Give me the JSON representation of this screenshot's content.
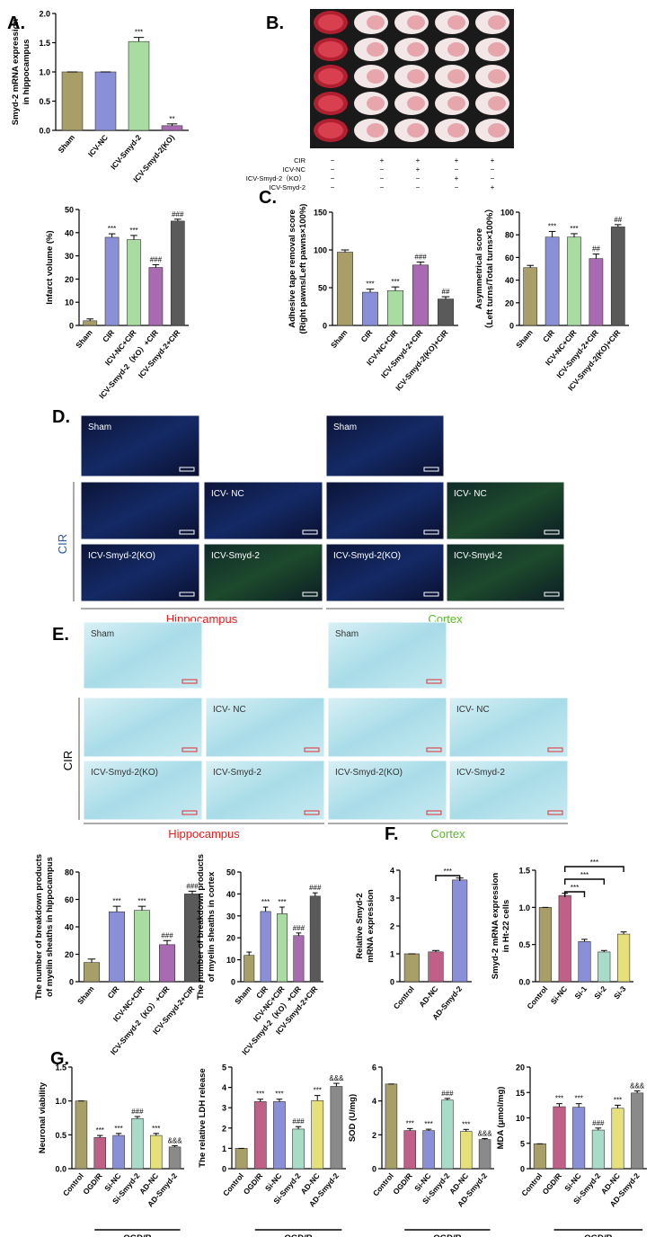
{
  "panels": [
    "A.",
    "B.",
    "C.",
    "D.",
    "E.",
    "F.",
    "G."
  ],
  "treatment_table": {
    "rows": [
      {
        "label": "CIR",
        "signs": [
          "−",
          "+",
          "+",
          "+",
          "+"
        ]
      },
      {
        "label": "ICV-NC",
        "signs": [
          "−",
          "−",
          "+",
          "−",
          "−"
        ]
      },
      {
        "label": "ICV-Smyd-2（KO）",
        "signs": [
          "−",
          "−",
          "−",
          "+",
          "−"
        ]
      },
      {
        "label": "ICV-Smyd-2",
        "signs": [
          "−",
          "−",
          "−",
          "−",
          "+"
        ]
      }
    ]
  },
  "panel_d": {
    "sham_labels": [
      "Sham",
      "Sham"
    ],
    "cell_labels": [
      [
        "ICV- NC",
        "ICV-Smyd-2(KO)",
        "ICV-Smyd-2"
      ],
      [
        "ICV- NC",
        "ICV-Smyd-2(KO)",
        "ICV-Smyd-2"
      ]
    ],
    "group_label": "CIR",
    "regions": [
      "Hippocampus",
      "Cortex"
    ]
  },
  "panel_e": {
    "sham_labels": [
      "Sham",
      "Sham"
    ],
    "cell_labels": [
      [
        "ICV- NC",
        "ICV-Smyd-2(KO)",
        "ICV-Smyd-2"
      ],
      [
        "ICV- NC",
        "ICV-Smyd-2(KO)",
        "ICV-Smyd-2"
      ]
    ],
    "group_label": "CIR",
    "regions": [
      "Hippocampus",
      "Cortex"
    ]
  },
  "chart_data": [
    {
      "type": "bar",
      "y_label": [
        "Smyd-2 mRNA expression",
        "in hippocampus"
      ],
      "categories": [
        "Sham",
        "ICV-NC",
        "ICV-Smyd-2",
        "ICV-Smyd-2(KO)"
      ],
      "values": [
        1.0,
        1.0,
        1.52,
        0.08
      ],
      "errors": [
        0,
        0,
        0.07,
        0.03
      ],
      "annotations": [
        null,
        null,
        "***",
        "**"
      ],
      "colors": [
        "#a89f68",
        "#8a90d8",
        "#a8dca0",
        "#a86ab0"
      ],
      "ylim": [
        0,
        2
      ],
      "yticks": [
        {
          "value": 0,
          "label": "0.0"
        },
        0.5,
        {
          "value": 1,
          "label": "1.0"
        },
        1.5,
        {
          "value": 2,
          "label": "2.0"
        }
      ]
    },
    {
      "type": "bar",
      "y_label": [
        "Infarct volume (%)"
      ],
      "categories": [
        "Sham",
        "CIR",
        "ICV-NC+CIR",
        "ICV-Smyd-2（KO）+CIR",
        "ICV-Smyd-2+CIR"
      ],
      "values": [
        2,
        38,
        37,
        25,
        45
      ],
      "errors": [
        0.8,
        1.5,
        1.8,
        1.2,
        0.8
      ],
      "annotations": [
        null,
        "***",
        "***",
        "###",
        "###"
      ],
      "colors": [
        "#a89f68",
        "#8a90d8",
        "#a8dca0",
        "#a86ab0",
        "#5a5a5a"
      ],
      "ylim": [
        0,
        50
      ],
      "yticks": [
        0,
        10,
        20,
        30,
        40,
        50
      ]
    },
    {
      "type": "bar",
      "y_label": [
        "Adhesive tape removal score",
        "(Right pawns/Left pawns×100%)"
      ],
      "categories": [
        "Sham",
        "CIR",
        "ICV-NC+CIR",
        "ICV-Smyd-2+CIR",
        "ICV-Smyd-2(KO)+CIR"
      ],
      "values": [
        97,
        44,
        46,
        80,
        35
      ],
      "errors": [
        3,
        4,
        5,
        4,
        3
      ],
      "annotations": [
        null,
        "***",
        "***",
        "###",
        "##"
      ],
      "colors": [
        "#a89f68",
        "#8a90d8",
        "#a8dca0",
        "#a86ab0",
        "#5a5a5a"
      ],
      "ylim": [
        0,
        150
      ],
      "yticks": [
        0,
        50,
        100,
        150
      ]
    },
    {
      "type": "bar",
      "y_label": [
        "Asymmetrical score",
        "（Left turns/Total turns×100%）"
      ],
      "categories": [
        "Sham",
        "CIR",
        "ICV-NC+CIR",
        "ICV-Smyd-2+CIR",
        "ICV-Smyd-2(KO)+CIR"
      ],
      "values": [
        51,
        78,
        78,
        59,
        87
      ],
      "errors": [
        2,
        5,
        3,
        4,
        2
      ],
      "annotations": [
        null,
        "***",
        "***",
        "##",
        "##"
      ],
      "colors": [
        "#a89f68",
        "#8a90d8",
        "#a8dca0",
        "#a86ab0",
        "#5a5a5a"
      ],
      "ylim": [
        0,
        100
      ],
      "yticks": [
        0,
        20,
        40,
        60,
        80,
        100
      ]
    },
    {
      "type": "bar",
      "y_label": [
        "The number of breakdown products",
        "of myelin sheaths in hippocampus"
      ],
      "categories": [
        "Sham",
        "CIR",
        "ICV-NC+CIR",
        "ICV-Smyd-2（KO）+CIR",
        "ICV-Smyd-2+CIR"
      ],
      "values": [
        14,
        51,
        52,
        27,
        64
      ],
      "errors": [
        2.5,
        4,
        3,
        3,
        2
      ],
      "annotations": [
        null,
        "***",
        "***",
        "###",
        "###"
      ],
      "colors": [
        "#a89f68",
        "#8a90d8",
        "#a8dca0",
        "#a86ab0",
        "#5a5a5a"
      ],
      "ylim": [
        0,
        80
      ],
      "yticks": [
        0,
        20,
        40,
        60,
        80
      ]
    },
    {
      "type": "bar",
      "y_label": [
        "The number of breakdown products",
        "of myelin sheaths in cortex"
      ],
      "categories": [
        "Sham",
        "CIR",
        "ICV-NC+CIR",
        "ICV-Smyd-2（KO）+CIR",
        "ICV-Smyd-2+CIR"
      ],
      "values": [
        12,
        32,
        31,
        21,
        39
      ],
      "errors": [
        1.5,
        2,
        3,
        1.2,
        1.5
      ],
      "annotations": [
        null,
        "***",
        "***",
        "###",
        "###"
      ],
      "colors": [
        "#a89f68",
        "#8a90d8",
        "#a8dca0",
        "#a86ab0",
        "#5a5a5a"
      ],
      "ylim": [
        0,
        50
      ],
      "yticks": [
        0,
        10,
        20,
        30,
        40,
        50
      ]
    },
    {
      "type": "bar",
      "y_label": [
        "Relative Smyd-2",
        "mRNA expression"
      ],
      "categories": [
        "Control",
        "AD-NC",
        "AD-Smyd-2"
      ],
      "values": [
        1.0,
        1.07,
        3.65
      ],
      "errors": [
        0,
        0.05,
        0.07
      ],
      "colors": [
        "#a89f68",
        "#c06088",
        "#8a90d8"
      ],
      "brackets": [
        {
          "from": 1,
          "to": 2,
          "label": "***"
        }
      ],
      "ylim": [
        0,
        4
      ],
      "yticks": [
        0,
        1,
        2,
        3,
        4
      ]
    },
    {
      "type": "bar",
      "y_label": [
        "Smyd-2 mRNA expression",
        "in Ht-22 cells"
      ],
      "categories": [
        "Control",
        "Si-NC",
        "Si-1",
        "Si-2",
        "Si-3"
      ],
      "values": [
        1.0,
        1.16,
        0.54,
        0.4,
        0.64
      ],
      "errors": [
        0,
        0.03,
        0.03,
        0.02,
        0.03
      ],
      "colors": [
        "#a89f68",
        "#c06088",
        "#8a90d8",
        "#a8dcc8",
        "#e6e07a"
      ],
      "brackets": [
        {
          "from": 1,
          "to": 2,
          "label": "***"
        },
        {
          "from": 1,
          "to": 3,
          "label": "***"
        },
        {
          "from": 1,
          "to": 4,
          "label": "***"
        }
      ],
      "ylim": [
        0,
        1.5
      ],
      "yticks": [
        {
          "value": 0,
          "label": "0.0"
        },
        0.5,
        {
          "value": 1,
          "label": "1.0"
        },
        1.5
      ]
    },
    {
      "type": "bar",
      "y_label": [
        "Neuronal viability"
      ],
      "categories": [
        "Control",
        "OGD/R",
        "Si-NC",
        "Si-Smyd-2",
        "AD-NC",
        "AD-Smyd-2"
      ],
      "values": [
        1.0,
        0.46,
        0.49,
        0.74,
        0.49,
        0.32
      ],
      "errors": [
        0,
        0.03,
        0.03,
        0.03,
        0.03,
        0.02
      ],
      "annotations": [
        null,
        "***",
        "***",
        "###",
        "***",
        "&&&"
      ],
      "colors": [
        "#a89f68",
        "#c06088",
        "#8a90d8",
        "#a8dcc8",
        "#e6e07a",
        "#8a8a8a"
      ],
      "group_label": "OGD/R",
      "ylim": [
        0,
        1.5
      ],
      "yticks": [
        {
          "value": 0,
          "label": "0.0"
        },
        0.5,
        {
          "value": 1,
          "label": "1.0"
        },
        1.5
      ]
    },
    {
      "type": "bar",
      "y_label": [
        "The relative LDH release"
      ],
      "categories": [
        "Control",
        "OGD/R",
        "Si-NC",
        "Si-Smyd-2",
        "AD-NC",
        "AD-Smyd-2"
      ],
      "values": [
        1.0,
        3.3,
        3.3,
        1.95,
        3.35,
        4.05
      ],
      "errors": [
        0,
        0.12,
        0.12,
        0.12,
        0.25,
        0.15
      ],
      "annotations": [
        null,
        "***",
        "***",
        "###",
        "***",
        "&&&"
      ],
      "colors": [
        "#a89f68",
        "#c06088",
        "#8a90d8",
        "#a8dcc8",
        "#e6e07a",
        "#8a8a8a"
      ],
      "group_label": "OGD/R",
      "ylim": [
        0,
        5
      ],
      "yticks": [
        0,
        1,
        2,
        3,
        4,
        5
      ]
    },
    {
      "type": "bar",
      "y_label": [
        "SOD (U/mg)"
      ],
      "categories": [
        "Control",
        "OGD/R",
        "Si-NC",
        "Si-Smyd-2",
        "AD-NC",
        "AD-Smyd-2"
      ],
      "values": [
        5.0,
        2.25,
        2.25,
        4.05,
        2.2,
        1.72
      ],
      "errors": [
        0,
        0.12,
        0.08,
        0.1,
        0.12,
        0.06
      ],
      "annotations": [
        null,
        "***",
        "***",
        "###",
        "***",
        "&&&"
      ],
      "colors": [
        "#a89f68",
        "#c06088",
        "#8a90d8",
        "#a8dcc8",
        "#e6e07a",
        "#8a8a8a"
      ],
      "group_label": "OGD/R",
      "ylim": [
        0,
        6
      ],
      "yticks": [
        0,
        2,
        4,
        6
      ]
    },
    {
      "type": "bar",
      "y_label": [
        "MDA (μmol/mg)"
      ],
      "categories": [
        "Control",
        "OGD/R",
        "Si-NC",
        "Si-Smyd-2",
        "AD-NC",
        "AD-Smyd-2"
      ],
      "values": [
        4.9,
        12.2,
        12.1,
        7.6,
        11.9,
        14.9
      ],
      "errors": [
        0,
        0.6,
        0.7,
        0.4,
        0.6,
        0.4
      ],
      "annotations": [
        null,
        "***",
        "***",
        "###",
        "***",
        "&&&"
      ],
      "colors": [
        "#a89f68",
        "#c06088",
        "#8a90d8",
        "#a8dcc8",
        "#e6e07a",
        "#8a8a8a"
      ],
      "group_label": "OGD/R",
      "ylim": [
        0,
        20
      ],
      "yticks": [
        0,
        5,
        10,
        15,
        20
      ]
    }
  ]
}
